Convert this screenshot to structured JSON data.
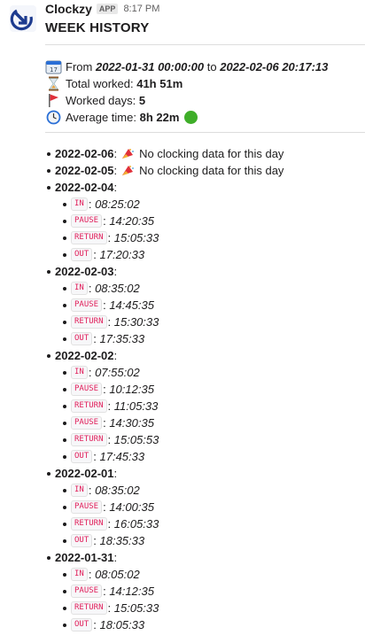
{
  "message": {
    "sender": "Clockzy",
    "badge": "APP",
    "time": "8:17 PM",
    "title": "WEEK HISTORY"
  },
  "stats": {
    "from_label": "From",
    "from_value": "2022-01-31 00:00:00",
    "to_label": "to",
    "to_value": "2022-02-06 20:17:13",
    "total_label": "Total worked:",
    "total_value": "41h 51m",
    "days_label": "Worked days:",
    "days_value": "5",
    "avg_label": "Average time:",
    "avg_value": "8h 22m"
  },
  "days": [
    {
      "date": "2022-02-06",
      "note": "No clocking data for this day"
    },
    {
      "date": "2022-02-05",
      "note": "No clocking data for this day"
    },
    {
      "date": "2022-02-04",
      "entries": [
        {
          "type": "IN",
          "time": "08:25:02"
        },
        {
          "type": "PAUSE",
          "time": "14:20:35"
        },
        {
          "type": "RETURN",
          "time": "15:05:33"
        },
        {
          "type": "OUT",
          "time": "17:20:33"
        }
      ]
    },
    {
      "date": "2022-02-03",
      "entries": [
        {
          "type": "IN",
          "time": "08:35:02"
        },
        {
          "type": "PAUSE",
          "time": "14:45:35"
        },
        {
          "type": "RETURN",
          "time": "15:30:33"
        },
        {
          "type": "OUT",
          "time": "17:35:33"
        }
      ]
    },
    {
      "date": "2022-02-02",
      "entries": [
        {
          "type": "IN",
          "time": "07:55:02"
        },
        {
          "type": "PAUSE",
          "time": "10:12:35"
        },
        {
          "type": "RETURN",
          "time": "11:05:33"
        },
        {
          "type": "PAUSE",
          "time": "14:30:35"
        },
        {
          "type": "RETURN",
          "time": "15:05:53"
        },
        {
          "type": "OUT",
          "time": "17:45:33"
        }
      ]
    },
    {
      "date": "2022-02-01",
      "entries": [
        {
          "type": "IN",
          "time": "08:35:02"
        },
        {
          "type": "PAUSE",
          "time": "14:00:35"
        },
        {
          "type": "RETURN",
          "time": "16:05:33"
        },
        {
          "type": "OUT",
          "time": "18:35:33"
        }
      ]
    },
    {
      "date": "2022-01-31",
      "entries": [
        {
          "type": "IN",
          "time": "08:05:02"
        },
        {
          "type": "PAUSE",
          "time": "14:12:35"
        },
        {
          "type": "RETURN",
          "time": "15:05:33"
        },
        {
          "type": "OUT",
          "time": "18:05:33"
        }
      ]
    }
  ]
}
